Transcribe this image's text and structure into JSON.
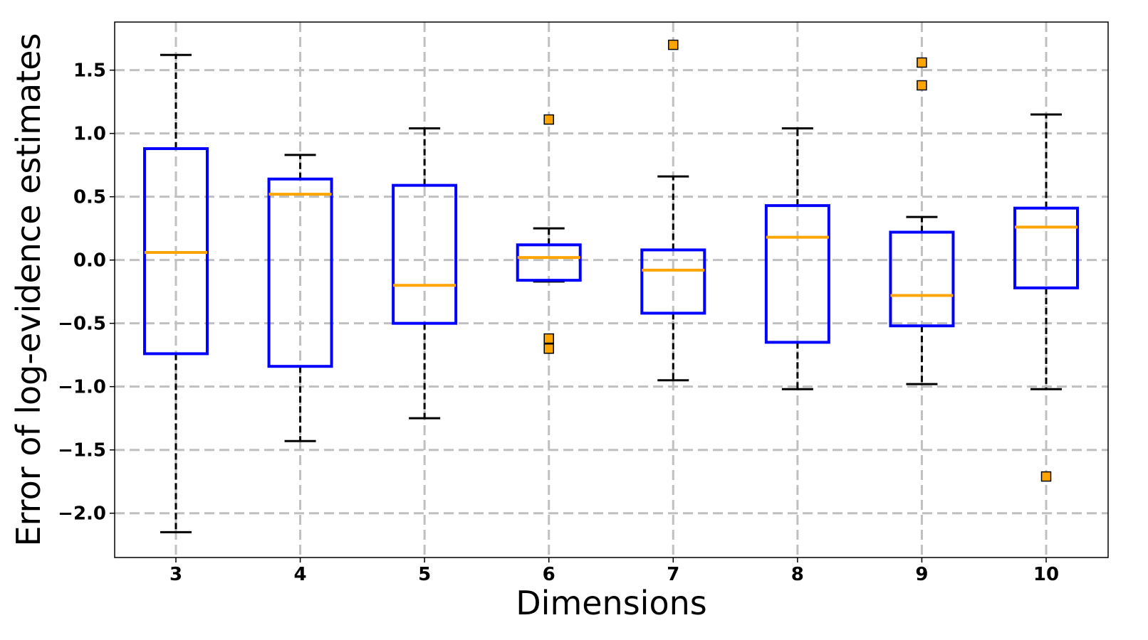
{
  "chart_data": {
    "type": "box",
    "xlabel": "Dimensions",
    "ylabel": "Error of log-evidence estimates",
    "categories": [
      "3",
      "4",
      "5",
      "6",
      "7",
      "8",
      "9",
      "10"
    ],
    "ylim": [
      -2.35,
      1.88
    ],
    "yticks": [
      -2.0,
      -1.5,
      -1.0,
      -0.5,
      0.0,
      0.5,
      1.0,
      1.5
    ],
    "ytick_labels": [
      "−2.0",
      "−1.5",
      "−1.0",
      "−0.5",
      "0.0",
      "0.5",
      "1.0",
      "1.5"
    ],
    "grid": true,
    "boxes": [
      {
        "category": "3",
        "whisker_low": -2.15,
        "q1": -0.74,
        "median": 0.06,
        "q3": 0.88,
        "whisker_high": 1.62,
        "outliers": []
      },
      {
        "category": "4",
        "whisker_low": -1.43,
        "q1": -0.84,
        "median": 0.52,
        "q3": 0.64,
        "whisker_high": 0.83,
        "outliers": []
      },
      {
        "category": "5",
        "whisker_low": -1.25,
        "q1": -0.5,
        "median": -0.2,
        "q3": 0.59,
        "whisker_high": 1.04,
        "outliers": []
      },
      {
        "category": "6",
        "whisker_low": -0.17,
        "q1": -0.16,
        "median": 0.02,
        "q3": 0.12,
        "whisker_high": 0.25,
        "outliers": [
          1.11,
          -0.62,
          -0.7
        ]
      },
      {
        "category": "7",
        "whisker_low": -0.95,
        "q1": -0.42,
        "median": -0.08,
        "q3": 0.08,
        "whisker_high": 0.66,
        "outliers": [
          1.7
        ]
      },
      {
        "category": "8",
        "whisker_low": -1.02,
        "q1": -0.65,
        "median": 0.18,
        "q3": 0.43,
        "whisker_high": 1.04,
        "outliers": []
      },
      {
        "category": "9",
        "whisker_low": -0.98,
        "q1": -0.52,
        "median": -0.28,
        "q3": 0.22,
        "whisker_high": 0.34,
        "outliers": [
          1.56,
          1.38
        ]
      },
      {
        "category": "10",
        "whisker_low": -1.02,
        "q1": -0.22,
        "median": 0.26,
        "q3": 0.41,
        "whisker_high": 1.15,
        "outliers": [
          -1.71
        ]
      }
    ],
    "colors": {
      "box": "#0000ff",
      "median": "#ffa500",
      "whisker": "#000000",
      "outlier_fill": "#ffa500",
      "outlier_edge": "#000000",
      "grid": "#c0c0c0"
    }
  }
}
